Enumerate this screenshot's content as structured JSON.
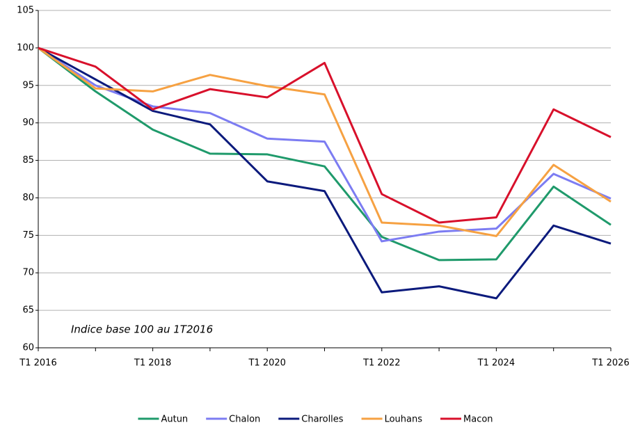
{
  "chart_data": {
    "type": "line",
    "annotation": "Indice base 100 au 1T2016",
    "categories": [
      "T1 2016",
      null,
      "T1 2018",
      null,
      "T1 2020",
      null,
      "T1 2022",
      null,
      "T1 2024",
      null,
      "T1 2026"
    ],
    "series": [
      {
        "name": "Autun",
        "color": "#1f9a6b",
        "values": [
          100,
          94.2,
          89.1,
          85.9,
          85.8,
          84.2,
          74.8,
          71.7,
          71.8,
          81.5,
          76.4
        ]
      },
      {
        "name": "Chalon",
        "color": "#7c7cf2",
        "values": [
          100,
          95,
          92.2,
          91.3,
          87.9,
          87.5,
          74.2,
          75.5,
          75.9,
          83.2,
          79.9
        ]
      },
      {
        "name": "Charolles",
        "color": "#0b1a7c",
        "values": [
          100,
          95.8,
          91.6,
          89.8,
          82.2,
          80.9,
          67.4,
          68.2,
          66.6,
          76.3,
          73.9
        ]
      },
      {
        "name": "Louhans",
        "color": "#f6a142",
        "values": [
          100,
          94.6,
          94.2,
          96.4,
          94.9,
          93.8,
          76.7,
          76.3,
          74.9,
          84.4,
          79.5
        ]
      },
      {
        "name": "Macon",
        "color": "#d8102b",
        "values": [
          100,
          97.5,
          91.8,
          94.5,
          93.4,
          98,
          80.5,
          76.7,
          77.4,
          91.8,
          88.1
        ]
      }
    ],
    "ylim": [
      60,
      105
    ],
    "yticks": [
      60,
      65,
      70,
      75,
      80,
      85,
      90,
      95,
      100,
      105
    ],
    "grid": true,
    "legend": "bottom"
  }
}
